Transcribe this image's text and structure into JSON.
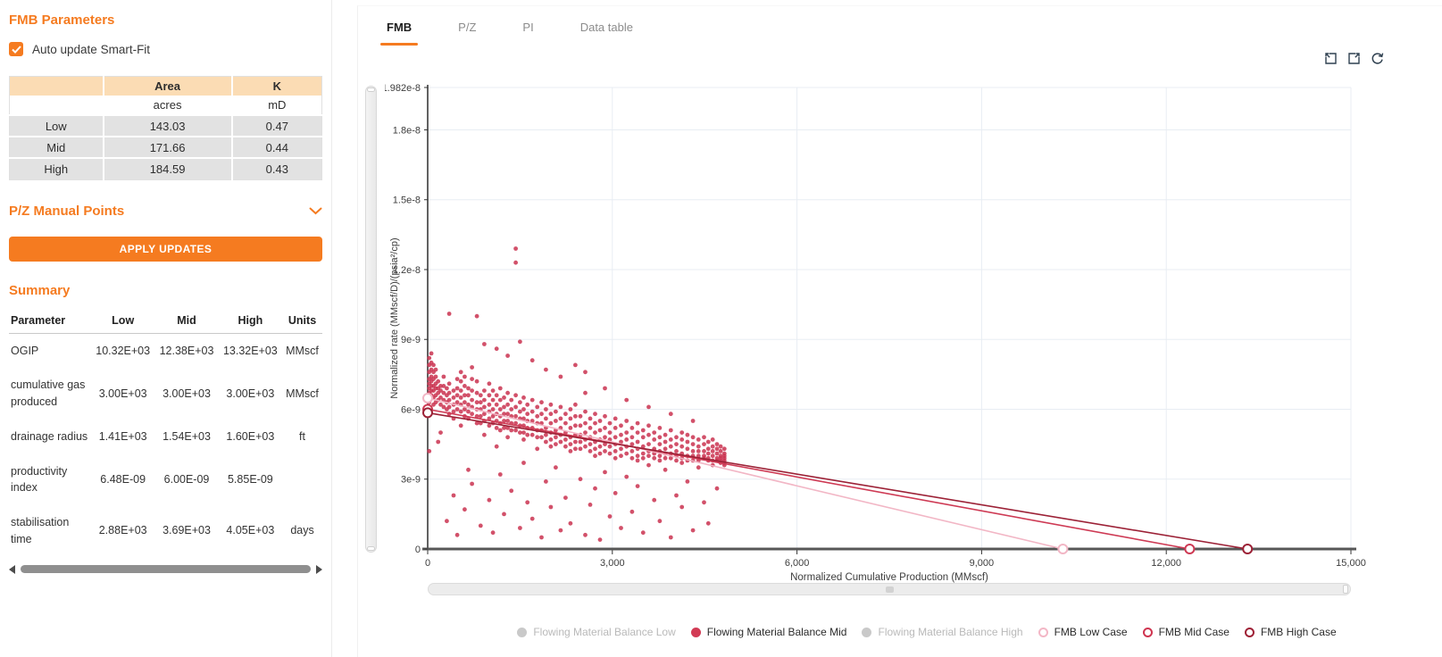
{
  "left_panel": {
    "title": "FMB Parameters",
    "auto_update": {
      "label": "Auto update Smart-Fit",
      "checked": true
    },
    "params_table": {
      "col_headers": [
        "Area",
        "K"
      ],
      "col_units": [
        "acres",
        "mD"
      ],
      "rows": [
        {
          "label": "Low",
          "area": "143.03",
          "k": "0.47"
        },
        {
          "label": "Mid",
          "area": "171.66",
          "k": "0.44"
        },
        {
          "label": "High",
          "area": "184.59",
          "k": "0.43"
        }
      ]
    },
    "pz_section_label": "P/Z Manual Points",
    "apply_button_label": "APPLY UPDATES",
    "summary": {
      "title": "Summary",
      "headers": [
        "Parameter",
        "Low",
        "Mid",
        "High",
        "Units"
      ],
      "rows": [
        {
          "parameter": "OGIP",
          "low": "10.32E+03",
          "mid": "12.38E+03",
          "high": "13.32E+03",
          "units": "MMscf"
        },
        {
          "parameter": "cumulative gas produced",
          "low": "3.00E+03",
          "mid": "3.00E+03",
          "high": "3.00E+03",
          "units": "MMscf"
        },
        {
          "parameter": "drainage radius",
          "low": "1.41E+03",
          "mid": "1.54E+03",
          "high": "1.60E+03",
          "units": "ft"
        },
        {
          "parameter": "productivity index",
          "low": "6.48E-09",
          "mid": "6.00E-09",
          "high": "5.85E-09",
          "units": ""
        },
        {
          "parameter": "stabilisation time",
          "low": "2.88E+03",
          "mid": "3.69E+03",
          "high": "4.05E+03",
          "units": "days"
        }
      ]
    }
  },
  "tabs": [
    {
      "label": "FMB",
      "active": true
    },
    {
      "label": "P/Z",
      "active": false
    },
    {
      "label": "PI",
      "active": false
    },
    {
      "label": "Data table",
      "active": false
    }
  ],
  "toolbar_icons": [
    "zoom-selection-icon",
    "zoom-undo-icon",
    "refresh-icon"
  ],
  "colors": {
    "accent_orange": "#f57b20",
    "table_header_peach": "#fbdcb4",
    "table_row_gray": "#e2e2e2",
    "scatter_crimson": "#ca3350",
    "fmb_low_pink": "#f2b6c5",
    "fmb_mid_red": "#ce3a54",
    "fmb_high_dark_red": "#9c2136",
    "gridline": "#e8edf3"
  },
  "chart_data": {
    "type": "scatter",
    "xlabel": "Normalized Cumulative Production (MMscf)",
    "ylabel": "Normalized rate (MMscf/D)/(psia²/cp)",
    "xlim": [
      0,
      15000
    ],
    "ylim_e9": [
      0,
      19.82
    ],
    "y_scale_note": "all y values are in units of 1e-9 (MMscf/D)/(psia2/cp)",
    "x_ticks": [
      {
        "v": 0,
        "label": "0"
      },
      {
        "v": 3000,
        "label": "3,000"
      },
      {
        "v": 6000,
        "label": "6,000"
      },
      {
        "v": 9000,
        "label": "9,000"
      },
      {
        "v": 12000,
        "label": "12,000"
      },
      {
        "v": 15000,
        "label": "15,000"
      }
    ],
    "y_ticks": [
      {
        "v": 0,
        "label": "0"
      },
      {
        "v": 3,
        "label": "3e-9"
      },
      {
        "v": 6,
        "label": "6e-9"
      },
      {
        "v": 9,
        "label": "9e-9"
      },
      {
        "v": 12,
        "label": "1.2e-8"
      },
      {
        "v": 15,
        "label": "1.5e-8"
      },
      {
        "v": 18,
        "label": "1.8e-8"
      },
      {
        "v": 19.82,
        "label": "1.982e-8"
      }
    ],
    "scatter_series_name": "Flowing Material Balance Mid",
    "scatter_color": "#ca3350",
    "scatter_columns": [
      [
        25,
        [
          8.2,
          7.9,
          7.6,
          7.3,
          7.1,
          6.9,
          6.7,
          6.5,
          6.3,
          5.9,
          4.2
        ]
      ],
      [
        60,
        [
          8.4,
          8.0,
          7.7,
          7.4,
          7.2,
          7.0,
          6.8,
          6.6
        ]
      ],
      [
        95,
        [
          7.9,
          7.6,
          7.3,
          7.0,
          6.8,
          6.5,
          6.2
        ]
      ],
      [
        130,
        [
          7.7,
          7.4,
          7.1,
          6.9,
          6.6,
          6.3
        ]
      ],
      [
        170,
        [
          7.2,
          6.9,
          6.7,
          6.4,
          4.6
        ]
      ],
      [
        210,
        [
          7.0,
          6.8,
          6.5,
          6.2,
          5.0
        ]
      ],
      [
        260,
        [
          7.4,
          7.0,
          6.7,
          6.4,
          6.1
        ]
      ],
      [
        310,
        [
          6.9,
          6.6,
          6.3,
          6.0,
          1.2
        ]
      ],
      [
        350,
        [
          10.1,
          7.1,
          6.7,
          6.4,
          6.1,
          5.8
        ]
      ],
      [
        420,
        [
          6.8,
          6.5,
          6.2,
          5.9,
          5.6,
          2.3
        ]
      ],
      [
        480,
        [
          7.3,
          6.9,
          6.6,
          6.3,
          6.0,
          0.6
        ]
      ],
      [
        540,
        [
          7.6,
          7.2,
          6.8,
          6.5,
          6.2,
          5.9,
          5.3
        ]
      ],
      [
        600,
        [
          7.4,
          7.0,
          6.6,
          6.3,
          6.0,
          5.7,
          1.7
        ]
      ],
      [
        660,
        [
          6.9,
          6.6,
          6.2,
          5.9,
          5.6,
          3.4
        ]
      ],
      [
        720,
        [
          7.8,
          7.3,
          6.8,
          6.4,
          6.1,
          5.8,
          2.8
        ]
      ],
      [
        800,
        [
          10.0,
          7.2,
          6.7,
          6.3,
          6.0,
          5.7,
          5.4
        ]
      ],
      [
        860,
        [
          6.6,
          6.3,
          6.0,
          5.7,
          5.4,
          1.0
        ]
      ],
      [
        920,
        [
          8.8,
          6.8,
          6.4,
          6.1,
          5.8,
          5.5,
          4.9
        ]
      ],
      [
        1000,
        [
          7.1,
          6.6,
          6.2,
          5.9,
          5.6,
          5.3,
          2.1
        ]
      ],
      [
        1060,
        [
          6.8,
          6.4,
          6.0,
          5.7,
          5.4,
          0.7
        ]
      ],
      [
        1120,
        [
          8.6,
          6.6,
          6.2,
          5.8,
          5.5,
          5.2,
          4.4
        ]
      ],
      [
        1180,
        [
          6.9,
          6.4,
          6.0,
          5.7,
          5.4,
          5.1,
          3.2
        ]
      ],
      [
        1240,
        [
          6.5,
          6.1,
          5.8,
          5.5,
          5.2,
          1.5
        ]
      ],
      [
        1300,
        [
          8.3,
          6.7,
          6.2,
          5.8,
          5.5,
          5.2,
          4.8
        ]
      ],
      [
        1360,
        [
          6.4,
          6.0,
          5.7,
          5.4,
          5.1,
          2.5
        ]
      ],
      [
        1430,
        [
          12.9,
          12.3,
          6.6,
          6.1,
          5.7,
          5.4,
          5.1
        ]
      ],
      [
        1500,
        [
          8.9,
          6.3,
          5.9,
          5.6,
          5.3,
          5.0,
          0.9
        ]
      ],
      [
        1560,
        [
          6.5,
          6.0,
          5.6,
          5.3,
          5.0,
          4.7,
          3.7
        ]
      ],
      [
        1620,
        [
          6.2,
          5.8,
          5.5,
          5.2,
          4.9,
          2.0
        ]
      ],
      [
        1700,
        [
          8.1,
          6.4,
          5.9,
          5.5,
          5.2,
          4.9,
          1.3
        ]
      ],
      [
        1780,
        [
          6.1,
          5.7,
          5.4,
          5.1,
          4.8,
          4.3
        ]
      ],
      [
        1850,
        [
          6.3,
          5.8,
          5.4,
          5.1,
          4.8,
          0.5
        ]
      ],
      [
        1920,
        [
          7.7,
          6.0,
          5.6,
          5.2,
          4.9,
          4.6,
          2.9
        ]
      ],
      [
        2000,
        [
          6.2,
          5.8,
          5.4,
          5.0,
          4.7,
          4.4,
          1.8
        ]
      ],
      [
        2080,
        [
          5.9,
          5.5,
          5.1,
          4.8,
          4.5,
          3.5
        ]
      ],
      [
        2160,
        [
          7.4,
          6.1,
          5.6,
          5.2,
          4.9,
          4.6,
          0.8
        ]
      ],
      [
        2240,
        [
          5.8,
          5.4,
          5.0,
          4.7,
          4.4,
          2.2
        ]
      ],
      [
        2320,
        [
          6.0,
          5.6,
          5.2,
          4.8,
          4.5,
          4.2,
          1.1
        ]
      ],
      [
        2400,
        [
          7.9,
          6.2,
          5.7,
          5.3,
          4.9,
          4.6,
          4.3
        ]
      ],
      [
        2480,
        [
          5.7,
          5.3,
          4.9,
          4.6,
          4.3,
          3.0
        ]
      ],
      [
        2560,
        [
          7.6,
          6.7,
          5.9,
          5.4,
          5.0,
          4.7,
          4.4,
          0.6
        ]
      ],
      [
        2640,
        [
          5.6,
          5.2,
          4.8,
          4.5,
          4.2,
          1.9
        ]
      ],
      [
        2720,
        [
          5.8,
          5.4,
          5.0,
          4.6,
          4.3,
          4.0,
          2.6
        ]
      ],
      [
        2800,
        [
          5.5,
          5.1,
          4.7,
          4.4,
          4.1,
          0.4
        ]
      ],
      [
        2880,
        [
          6.9,
          5.7,
          5.2,
          4.8,
          4.5,
          4.2,
          3.3
        ]
      ],
      [
        2960,
        [
          5.4,
          5.0,
          4.7,
          4.4,
          4.1,
          1.4
        ]
      ],
      [
        3050,
        [
          5.6,
          5.2,
          4.8,
          4.5,
          4.2,
          3.9,
          2.4
        ]
      ],
      [
        3140,
        [
          5.3,
          4.9,
          4.6,
          4.3,
          4.0,
          0.9
        ]
      ],
      [
        3230,
        [
          6.4,
          5.5,
          5.0,
          4.7,
          4.4,
          4.1,
          3.1
        ]
      ],
      [
        3320,
        [
          5.2,
          4.8,
          4.5,
          4.2,
          3.9,
          1.6
        ]
      ],
      [
        3410,
        [
          5.4,
          5.0,
          4.6,
          4.3,
          4.0,
          3.8,
          2.7
        ]
      ],
      [
        3500,
        [
          5.1,
          4.8,
          4.4,
          4.1,
          3.9,
          0.7
        ]
      ],
      [
        3590,
        [
          6.1,
          5.3,
          4.9,
          4.5,
          4.2,
          4.0,
          3.6
        ]
      ],
      [
        3680,
        [
          5.0,
          4.7,
          4.3,
          4.1,
          3.9,
          2.1
        ]
      ],
      [
        3770,
        [
          5.2,
          4.8,
          4.5,
          4.2,
          4.0,
          3.8,
          1.2
        ]
      ],
      [
        3860,
        [
          4.9,
          4.6,
          4.3,
          4.1,
          3.9,
          3.4
        ]
      ],
      [
        3950,
        [
          5.8,
          5.1,
          4.7,
          4.4,
          4.1,
          3.9,
          0.5
        ]
      ],
      [
        4040,
        [
          4.8,
          4.5,
          4.2,
          4.0,
          3.8,
          2.3
        ]
      ],
      [
        4130,
        [
          5.0,
          4.7,
          4.4,
          4.1,
          3.9,
          3.7,
          1.8
        ]
      ],
      [
        4220,
        [
          4.9,
          4.6,
          4.3,
          4.0,
          3.8,
          2.9
        ]
      ],
      [
        4310,
        [
          5.5,
          4.8,
          4.5,
          4.2,
          4.0,
          3.8,
          0.8
        ]
      ],
      [
        4400,
        [
          4.7,
          4.4,
          4.2,
          4.0,
          3.8,
          3.5
        ]
      ],
      [
        4490,
        [
          4.8,
          4.5,
          4.2,
          4.0,
          3.9,
          2.0
        ]
      ],
      [
        4560,
        [
          4.6,
          4.3,
          4.1,
          3.9,
          3.8,
          1.1
        ]
      ],
      [
        4630,
        [
          4.7,
          4.4,
          4.2,
          4.0,
          3.8,
          3.6
        ]
      ],
      [
        4700,
        [
          4.5,
          4.3,
          4.1,
          3.9,
          3.8,
          2.6
        ]
      ],
      [
        4760,
        [
          4.4,
          4.2,
          4.0,
          3.9,
          3.8,
          3.7
        ]
      ],
      [
        4820,
        [
          4.3,
          4.1,
          4.0,
          3.9,
          3.8,
          3.7,
          3.6
        ]
      ]
    ],
    "lines": [
      {
        "label": "FMB Low Case",
        "color": "#f2b6c5",
        "x": [
          0,
          10320
        ],
        "y_e9": [
          6.48,
          0
        ]
      },
      {
        "label": "FMB Mid Case",
        "color": "#ce3a54",
        "x": [
          0,
          12380
        ],
        "y_e9": [
          6.0,
          0
        ]
      },
      {
        "label": "FMB High Case",
        "color": "#9c2136",
        "x": [
          0,
          13320
        ],
        "y_e9": [
          5.85,
          0
        ]
      }
    ],
    "legend": [
      {
        "label": "Flowing Material Balance Low",
        "type": "dot",
        "color": "#c9c9c9",
        "muted": true
      },
      {
        "label": "Flowing Material Balance Mid",
        "type": "dot",
        "color": "#d23b55",
        "muted": false
      },
      {
        "label": "Flowing Material Balance High",
        "type": "dot",
        "color": "#c9c9c9",
        "muted": true
      },
      {
        "label": "FMB Low Case",
        "type": "ring",
        "color": "#f3b7c6",
        "muted": false
      },
      {
        "label": "FMB Mid Case",
        "type": "ring",
        "color": "#cf3550",
        "muted": false
      },
      {
        "label": "FMB High Case",
        "type": "ring",
        "color": "#9e1f35",
        "muted": false
      }
    ]
  }
}
